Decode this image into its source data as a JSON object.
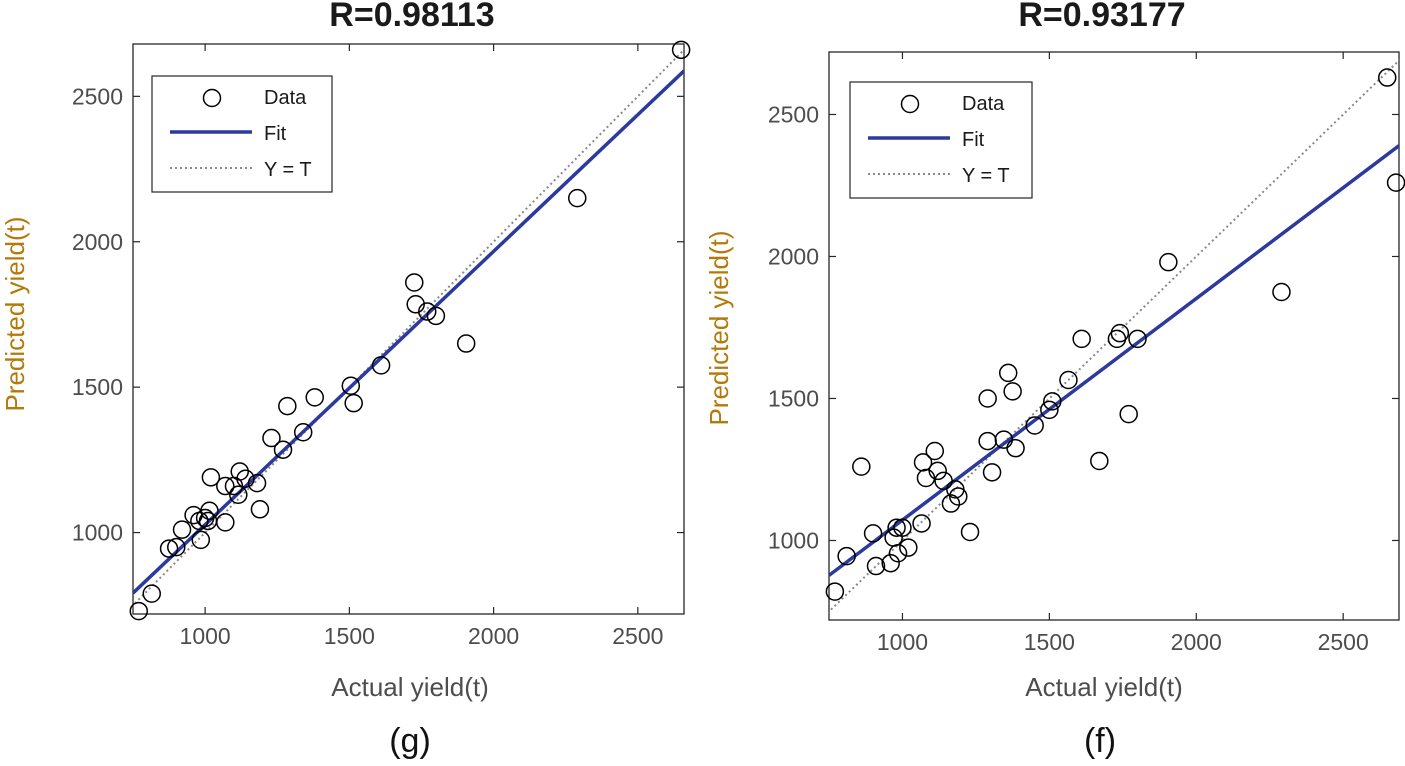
{
  "chart_data": [
    {
      "type": "scatter",
      "panel": "(g)",
      "title": "R=0.98113",
      "xlabel": "Actual yield(t)",
      "ylabel": "Predicted yield(t)",
      "xlim": [
        750,
        2660
      ],
      "ylim": [
        720,
        2680
      ],
      "xticks": [
        1000,
        1500,
        2000,
        2500
      ],
      "yticks": [
        1000,
        1500,
        2000,
        2500
      ],
      "legend": {
        "position": "top-left",
        "entries": [
          "Data",
          "Fit",
          "Y = T"
        ]
      },
      "fit": {
        "slope": 0.94,
        "intercept": 87
      },
      "colors": {
        "data": "#000000",
        "fit": "#2b3a9c",
        "identity": "#8a8a8a"
      },
      "points": [
        [
          770,
          730
        ],
        [
          815,
          790
        ],
        [
          875,
          945
        ],
        [
          900,
          950
        ],
        [
          920,
          1010
        ],
        [
          960,
          1060
        ],
        [
          980,
          1040
        ],
        [
          985,
          975
        ],
        [
          1000,
          1050
        ],
        [
          1010,
          1040
        ],
        [
          1015,
          1075
        ],
        [
          1020,
          1190
        ],
        [
          1070,
          1160
        ],
        [
          1070,
          1035
        ],
        [
          1100,
          1160
        ],
        [
          1115,
          1130
        ],
        [
          1120,
          1210
        ],
        [
          1140,
          1185
        ],
        [
          1180,
          1170
        ],
        [
          1190,
          1080
        ],
        [
          1230,
          1325
        ],
        [
          1270,
          1285
        ],
        [
          1285,
          1435
        ],
        [
          1340,
          1345
        ],
        [
          1380,
          1465
        ],
        [
          1505,
          1505
        ],
        [
          1515,
          1445
        ],
        [
          1610,
          1575
        ],
        [
          1725,
          1860
        ],
        [
          1730,
          1785
        ],
        [
          1770,
          1760
        ],
        [
          1800,
          1745
        ],
        [
          1905,
          1650
        ],
        [
          2290,
          2150
        ],
        [
          2650,
          2660
        ]
      ]
    },
    {
      "type": "scatter",
      "panel": "(f)",
      "title": "R=0.93177",
      "xlabel": "Actual yield(t)",
      "ylabel": "Predicted yield(t)",
      "xlim": [
        750,
        2690
      ],
      "ylim": [
        720,
        2720
      ],
      "xticks": [
        1000,
        1500,
        2000,
        2500
      ],
      "yticks": [
        1000,
        1500,
        2000,
        2500
      ],
      "legend": {
        "position": "top-left",
        "entries": [
          "Data",
          "Fit",
          "Y = T"
        ]
      },
      "fit": {
        "slope": 0.78,
        "intercept": 292
      },
      "colors": {
        "data": "#000000",
        "fit": "#2b3a9c",
        "identity": "#8a8a8a"
      },
      "points": [
        [
          770,
          820
        ],
        [
          810,
          945
        ],
        [
          860,
          1260
        ],
        [
          900,
          1025
        ],
        [
          910,
          910
        ],
        [
          960,
          920
        ],
        [
          970,
          1010
        ],
        [
          980,
          1045
        ],
        [
          985,
          955
        ],
        [
          1000,
          1045
        ],
        [
          1020,
          975
        ],
        [
          1065,
          1060
        ],
        [
          1070,
          1275
        ],
        [
          1080,
          1220
        ],
        [
          1110,
          1315
        ],
        [
          1120,
          1245
        ],
        [
          1140,
          1210
        ],
        [
          1165,
          1130
        ],
        [
          1180,
          1180
        ],
        [
          1190,
          1155
        ],
        [
          1230,
          1030
        ],
        [
          1290,
          1500
        ],
        [
          1290,
          1350
        ],
        [
          1305,
          1240
        ],
        [
          1345,
          1355
        ],
        [
          1360,
          1590
        ],
        [
          1375,
          1525
        ],
        [
          1385,
          1325
        ],
        [
          1450,
          1405
        ],
        [
          1500,
          1460
        ],
        [
          1510,
          1490
        ],
        [
          1565,
          1565
        ],
        [
          1610,
          1710
        ],
        [
          1670,
          1280
        ],
        [
          1730,
          1710
        ],
        [
          1740,
          1730
        ],
        [
          1770,
          1445
        ],
        [
          1800,
          1710
        ],
        [
          1905,
          1980
        ],
        [
          2290,
          1875
        ],
        [
          2650,
          2630
        ],
        [
          2680,
          2260
        ]
      ]
    }
  ]
}
